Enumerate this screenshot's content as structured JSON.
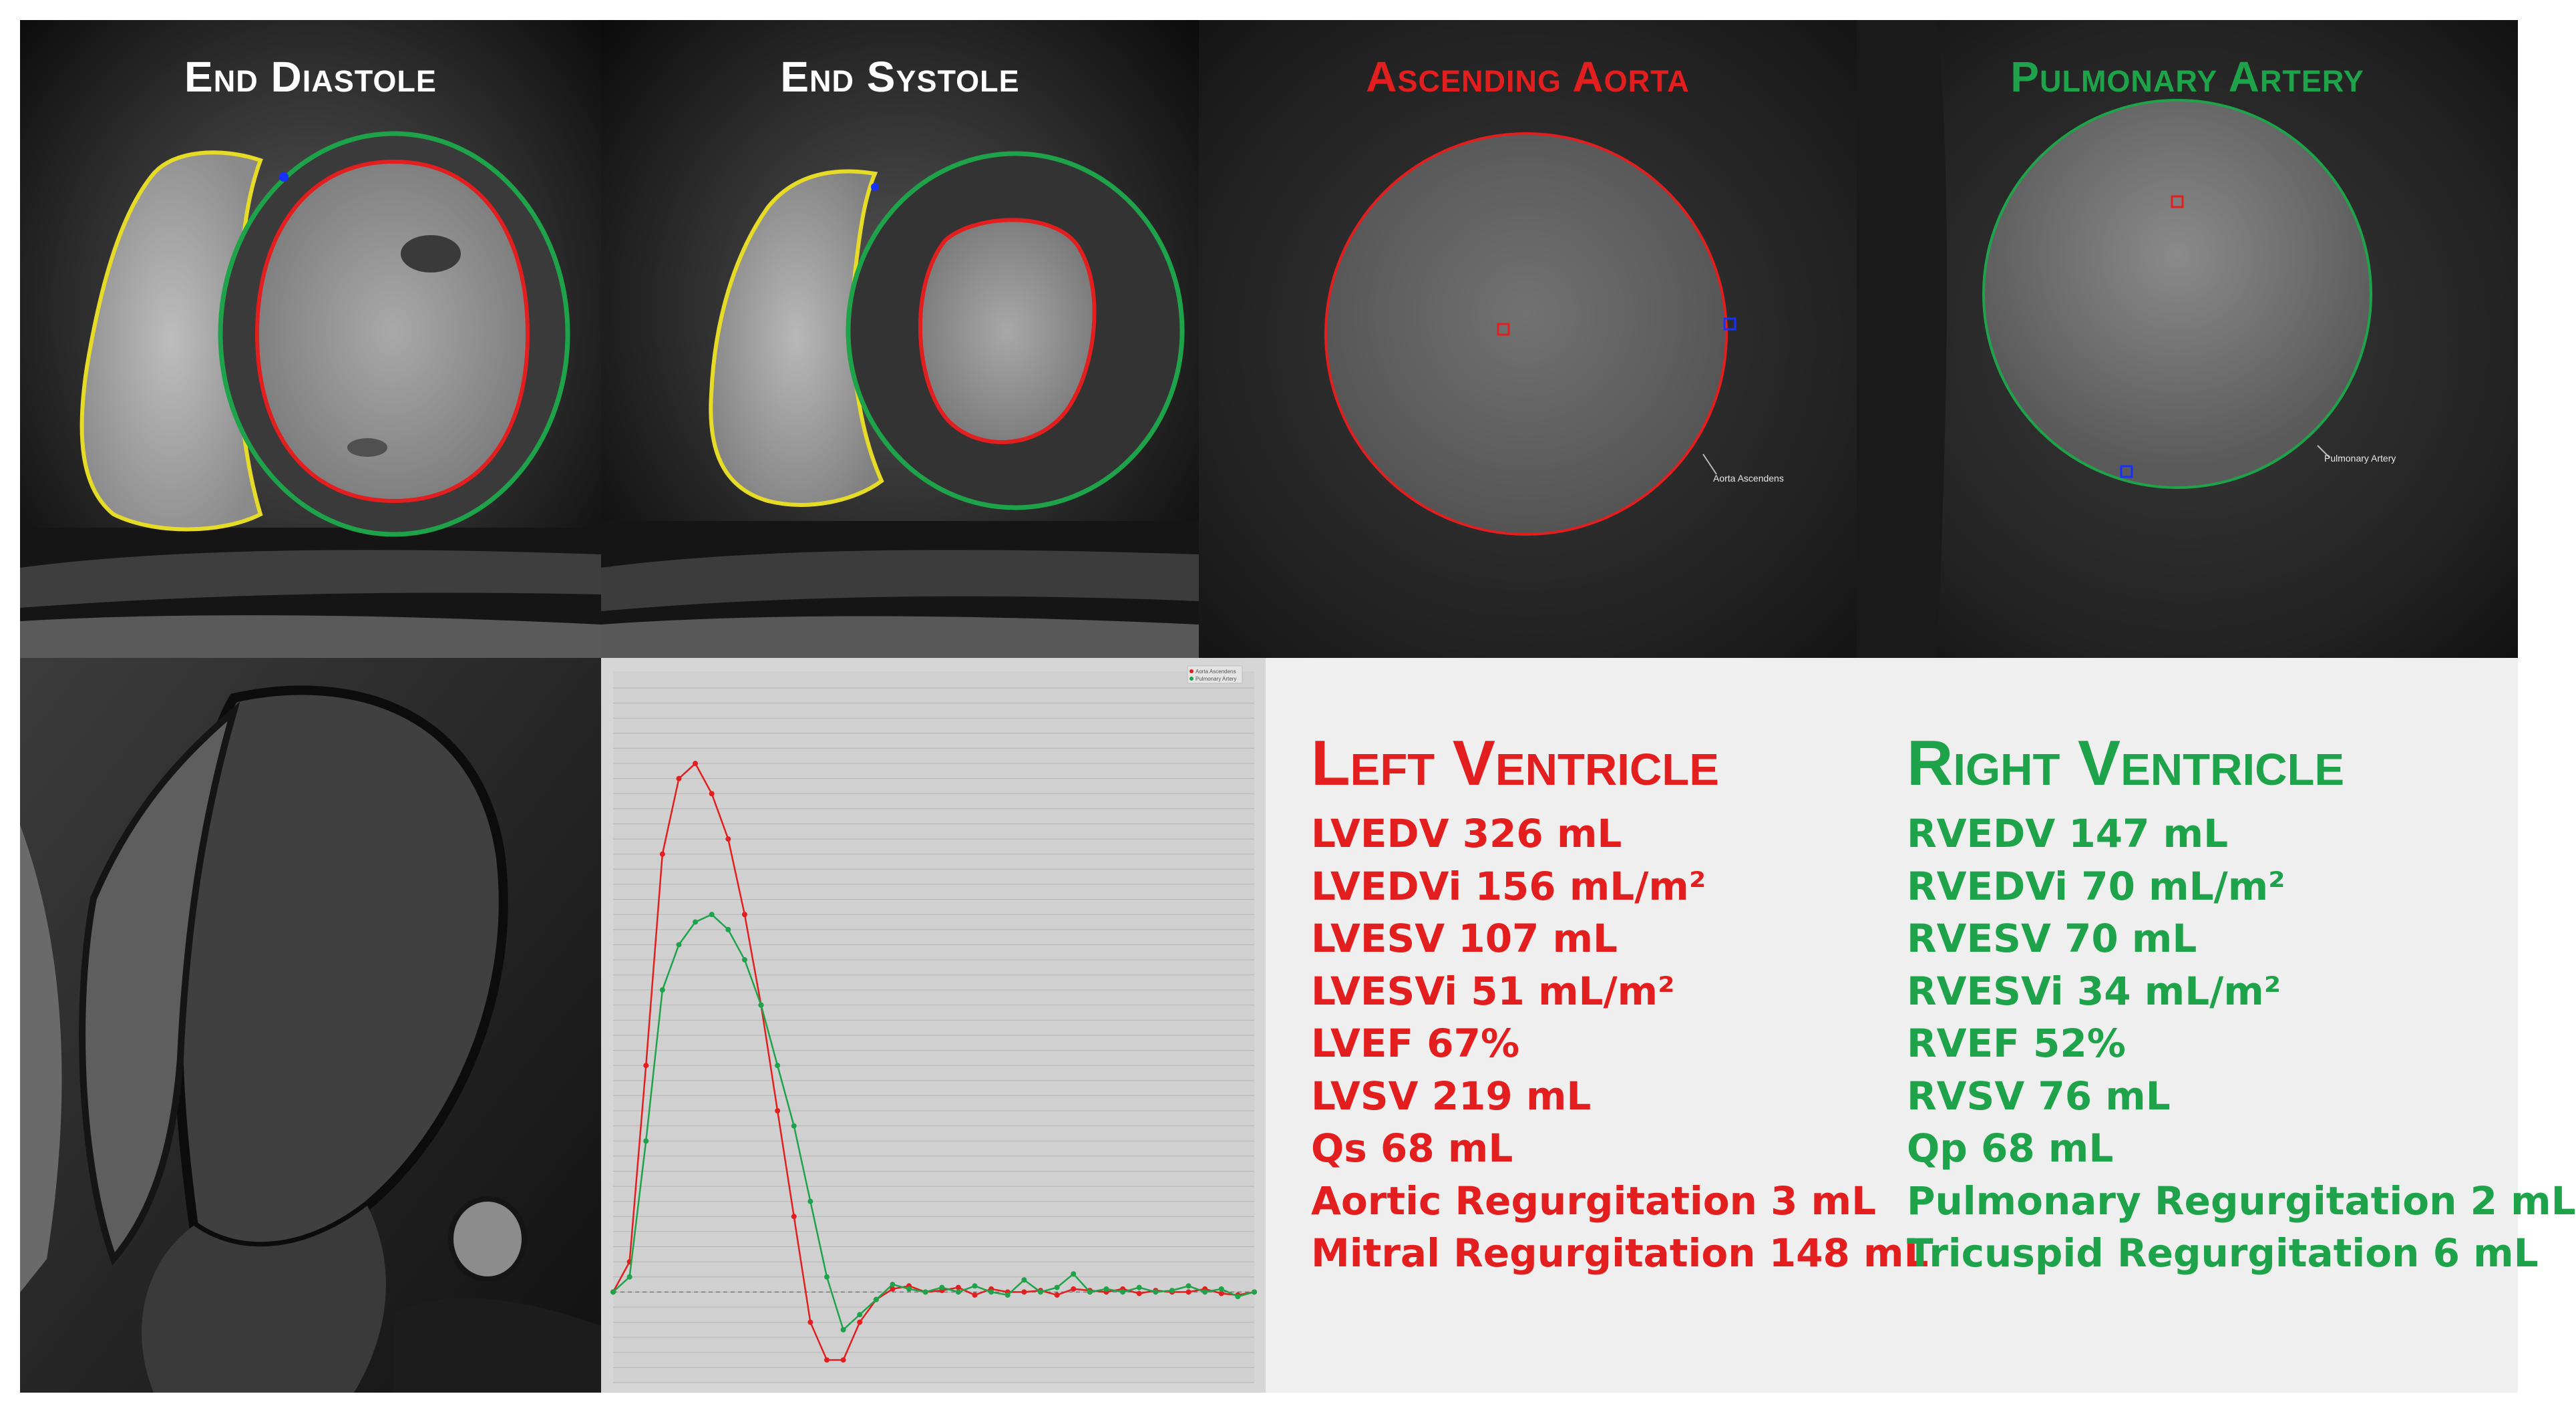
{
  "colors": {
    "red": "#e31e1e",
    "green": "#1fa34a",
    "yellow": "#e6dc28",
    "white": "#ffffff",
    "marker_blue": "#1530ff"
  },
  "panels": {
    "end_diastole": {
      "title": "End Diastole"
    },
    "end_systole": {
      "title": "End Systole"
    },
    "ascending_aorta": {
      "title": "Ascending Aorta",
      "contour_label": "Aorta Ascendens"
    },
    "pulmonary_artery": {
      "title": "Pulmonary Artery",
      "contour_label": "Pulmonary Artery"
    }
  },
  "chart_data": {
    "type": "line",
    "title": "",
    "xlabel": "",
    "ylabel": "",
    "legend": {
      "placement": "top-right",
      "entries": [
        "Aorta Ascendens",
        "Pulmonary Artery"
      ]
    },
    "grid": true,
    "x": [
      0,
      1,
      2,
      3,
      4,
      5,
      6,
      7,
      8,
      9,
      10,
      11,
      12,
      13,
      14,
      15,
      16,
      17,
      18,
      19,
      20,
      21,
      22,
      23,
      24,
      25,
      26,
      27,
      28,
      29,
      30,
      31,
      32,
      33,
      34,
      35,
      36,
      37,
      38,
      39
    ],
    "ylim": [
      -60,
      400
    ],
    "series": [
      {
        "name": "Aorta Ascendens",
        "color": "#e31e1e",
        "values": [
          0,
          20,
          150,
          290,
          340,
          350,
          330,
          300,
          250,
          190,
          120,
          50,
          -20,
          -45,
          -45,
          -20,
          -5,
          2,
          4,
          0,
          1,
          3,
          -2,
          2,
          0,
          0,
          1,
          -2,
          2,
          1,
          0,
          2,
          -1,
          1,
          0,
          0,
          2,
          -1,
          -2,
          0
        ]
      },
      {
        "name": "Pulmonary Artery",
        "color": "#1fa34a",
        "values": [
          0,
          10,
          100,
          200,
          230,
          245,
          250,
          240,
          220,
          190,
          150,
          110,
          60,
          10,
          -25,
          -15,
          -5,
          5,
          2,
          0,
          3,
          0,
          4,
          0,
          -2,
          8,
          0,
          3,
          12,
          0,
          2,
          0,
          3,
          0,
          1,
          4,
          0,
          2,
          -3,
          0
        ]
      }
    ]
  },
  "results": {
    "left": {
      "title": "Left Ventricle",
      "items": [
        "LVEDV 326 mL",
        "LVEDVi 156 mL/m²",
        "LVESV 107 mL",
        "LVESVi 51 mL/m²",
        "LVEF 67%",
        "LVSV 219 mL",
        "Qs 68 mL",
        "Aortic Regurgitation 3 mL",
        "Mitral Regurgitation 148 mL"
      ]
    },
    "right": {
      "title": "Right Ventricle",
      "items": [
        "RVEDV 147 mL",
        "RVEDVi 70 mL/m²",
        "RVESV 70 mL",
        "RVESVi 34 mL/m²",
        "RVEF 52%",
        "RVSV 76 mL",
        "Qp 68 mL",
        "Pulmonary Regurgitation 2 mL",
        "Tricuspid Regurgitation 6 mL"
      ]
    }
  }
}
